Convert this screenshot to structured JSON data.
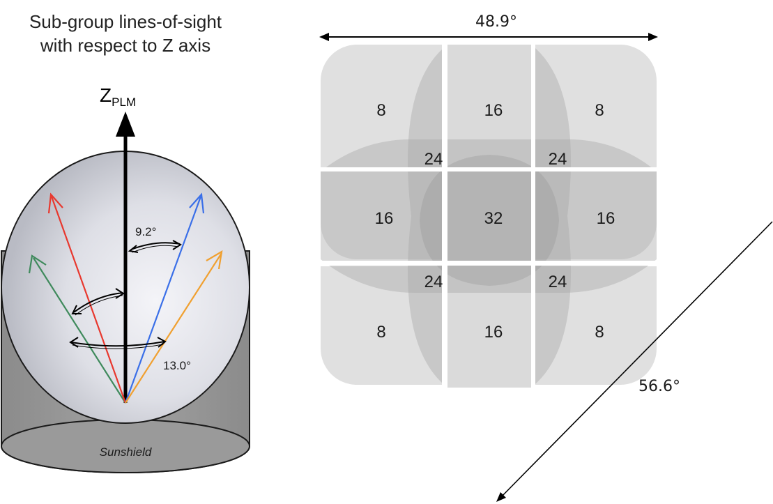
{
  "left_panel": {
    "title_line1": "Sub-group lines-of-sight",
    "title_line2": "with respect to Z axis",
    "axis_main": "Z",
    "axis_sub": "PLM",
    "angle_inner": "9.2°",
    "angle_outer": "13.0°",
    "base_label": "Sunshield",
    "line_colors": {
      "outer_left": "#3f8a5c",
      "inner_left": "#e8382e",
      "inner_right": "#3a6fe8",
      "outer_right": "#f0a030"
    }
  },
  "right_panel": {
    "width_label": "48.9°",
    "diagonal_label": "56.6°",
    "grid_counts": [
      [
        "8",
        "16",
        "8"
      ],
      [
        "16",
        "32",
        "16"
      ],
      [
        "8",
        "16",
        "8"
      ]
    ],
    "overlap_counts": [
      "24",
      "24",
      "24",
      "24"
    ]
  }
}
